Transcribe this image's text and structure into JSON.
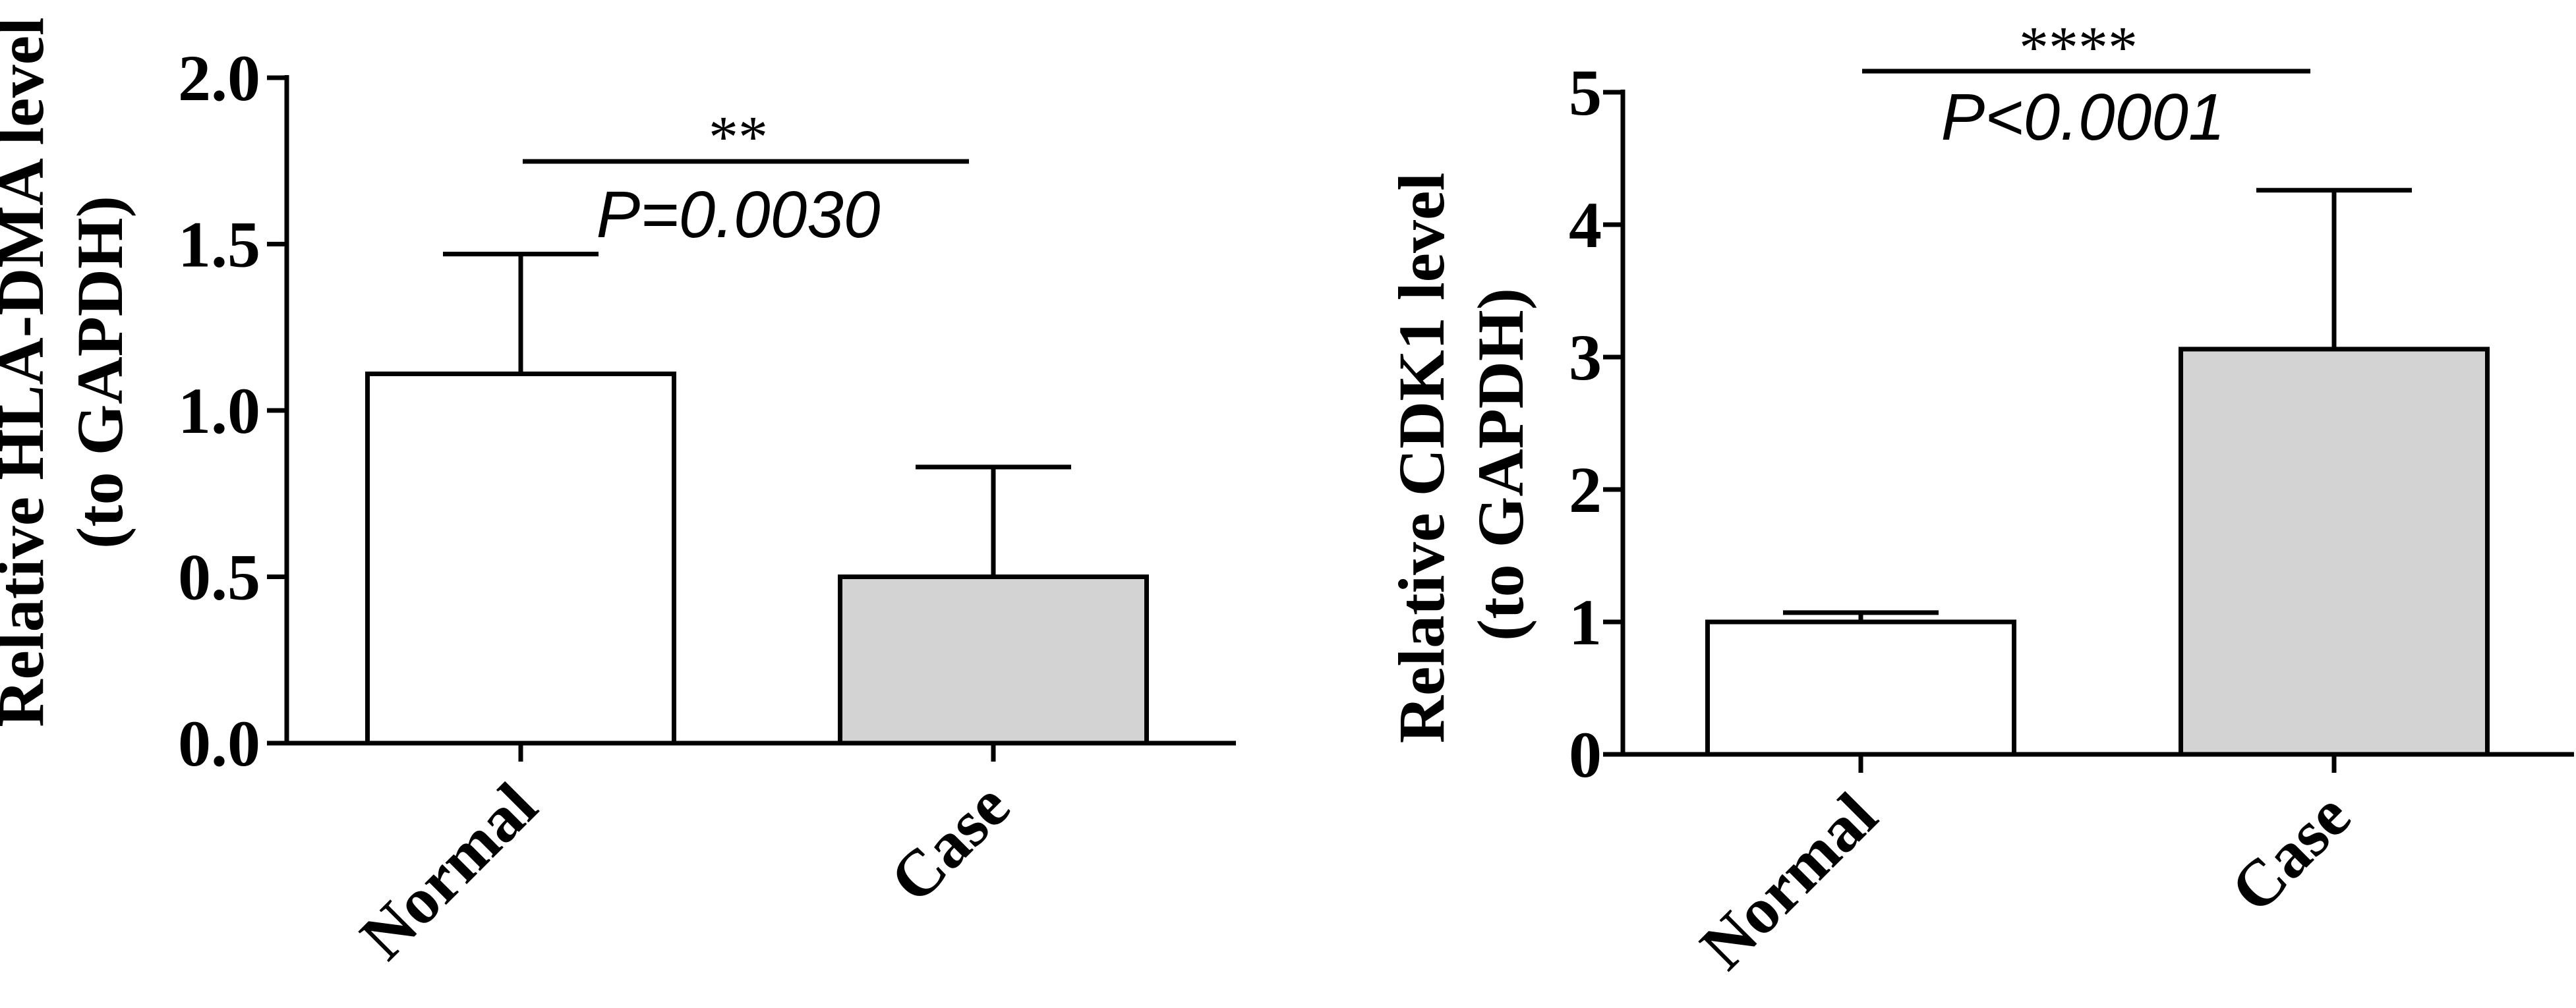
{
  "chart_data": [
    {
      "type": "bar",
      "categories": [
        "Normal",
        "Case"
      ],
      "values": [
        1.11,
        0.5
      ],
      "error_upper": [
        1.47,
        0.83
      ],
      "ylabel_line1": "Relative HLA-DMA level",
      "ylabel_line2": "(to GAPDH)",
      "ylim": [
        0,
        2
      ],
      "yticks": [
        "0.0",
        "0.5",
        "1.0",
        "1.5",
        "2.0"
      ],
      "bar_colors": [
        "#ffffff",
        "#d3d3d3"
      ],
      "significance": {
        "stars": "**",
        "p_text": "P=0.0030"
      }
    },
    {
      "type": "bar",
      "categories": [
        "Normal",
        "Case"
      ],
      "values": [
        1.0,
        3.06
      ],
      "error_upper": [
        1.07,
        4.26
      ],
      "ylabel_line1": "Relative CDK1 level",
      "ylabel_line2": "(to GAPDH)",
      "ylim": [
        0,
        5
      ],
      "yticks": [
        "0",
        "1",
        "2",
        "3",
        "4",
        "5"
      ],
      "bar_colors": [
        "#ffffff",
        "#d3d3d3"
      ],
      "significance": {
        "stars": "****",
        "p_text": "P<0.0001"
      }
    }
  ]
}
